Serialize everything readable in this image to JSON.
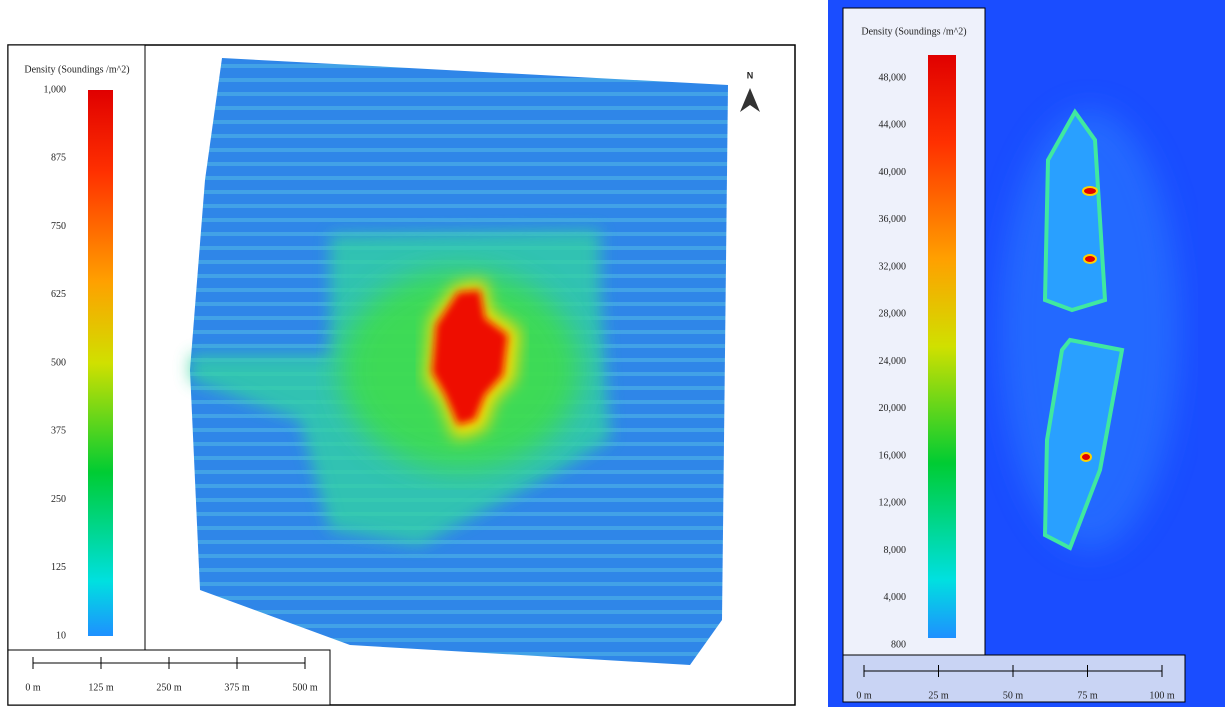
{
  "panels": [
    {
      "legend": {
        "title": "Density (Soundings /m^2)",
        "ticks": [
          "1,000",
          "875",
          "750",
          "625",
          "500",
          "375",
          "250",
          "125",
          "10"
        ]
      },
      "scale_bar": [
        "0 m",
        "125 m",
        "250 m",
        "375 m",
        "500 m"
      ],
      "north": "N"
    },
    {
      "legend": {
        "title": "Density (Soundings /m^2)",
        "ticks": [
          "48,000",
          "44,000",
          "40,000",
          "36,000",
          "32,000",
          "28,000",
          "24,000",
          "20,000",
          "16,000",
          "12,000",
          "8,000",
          "4,000",
          "800"
        ]
      },
      "scale_bar": [
        "0 m",
        "25 m",
        "50 m",
        "75 m",
        "100 m"
      ]
    }
  ]
}
